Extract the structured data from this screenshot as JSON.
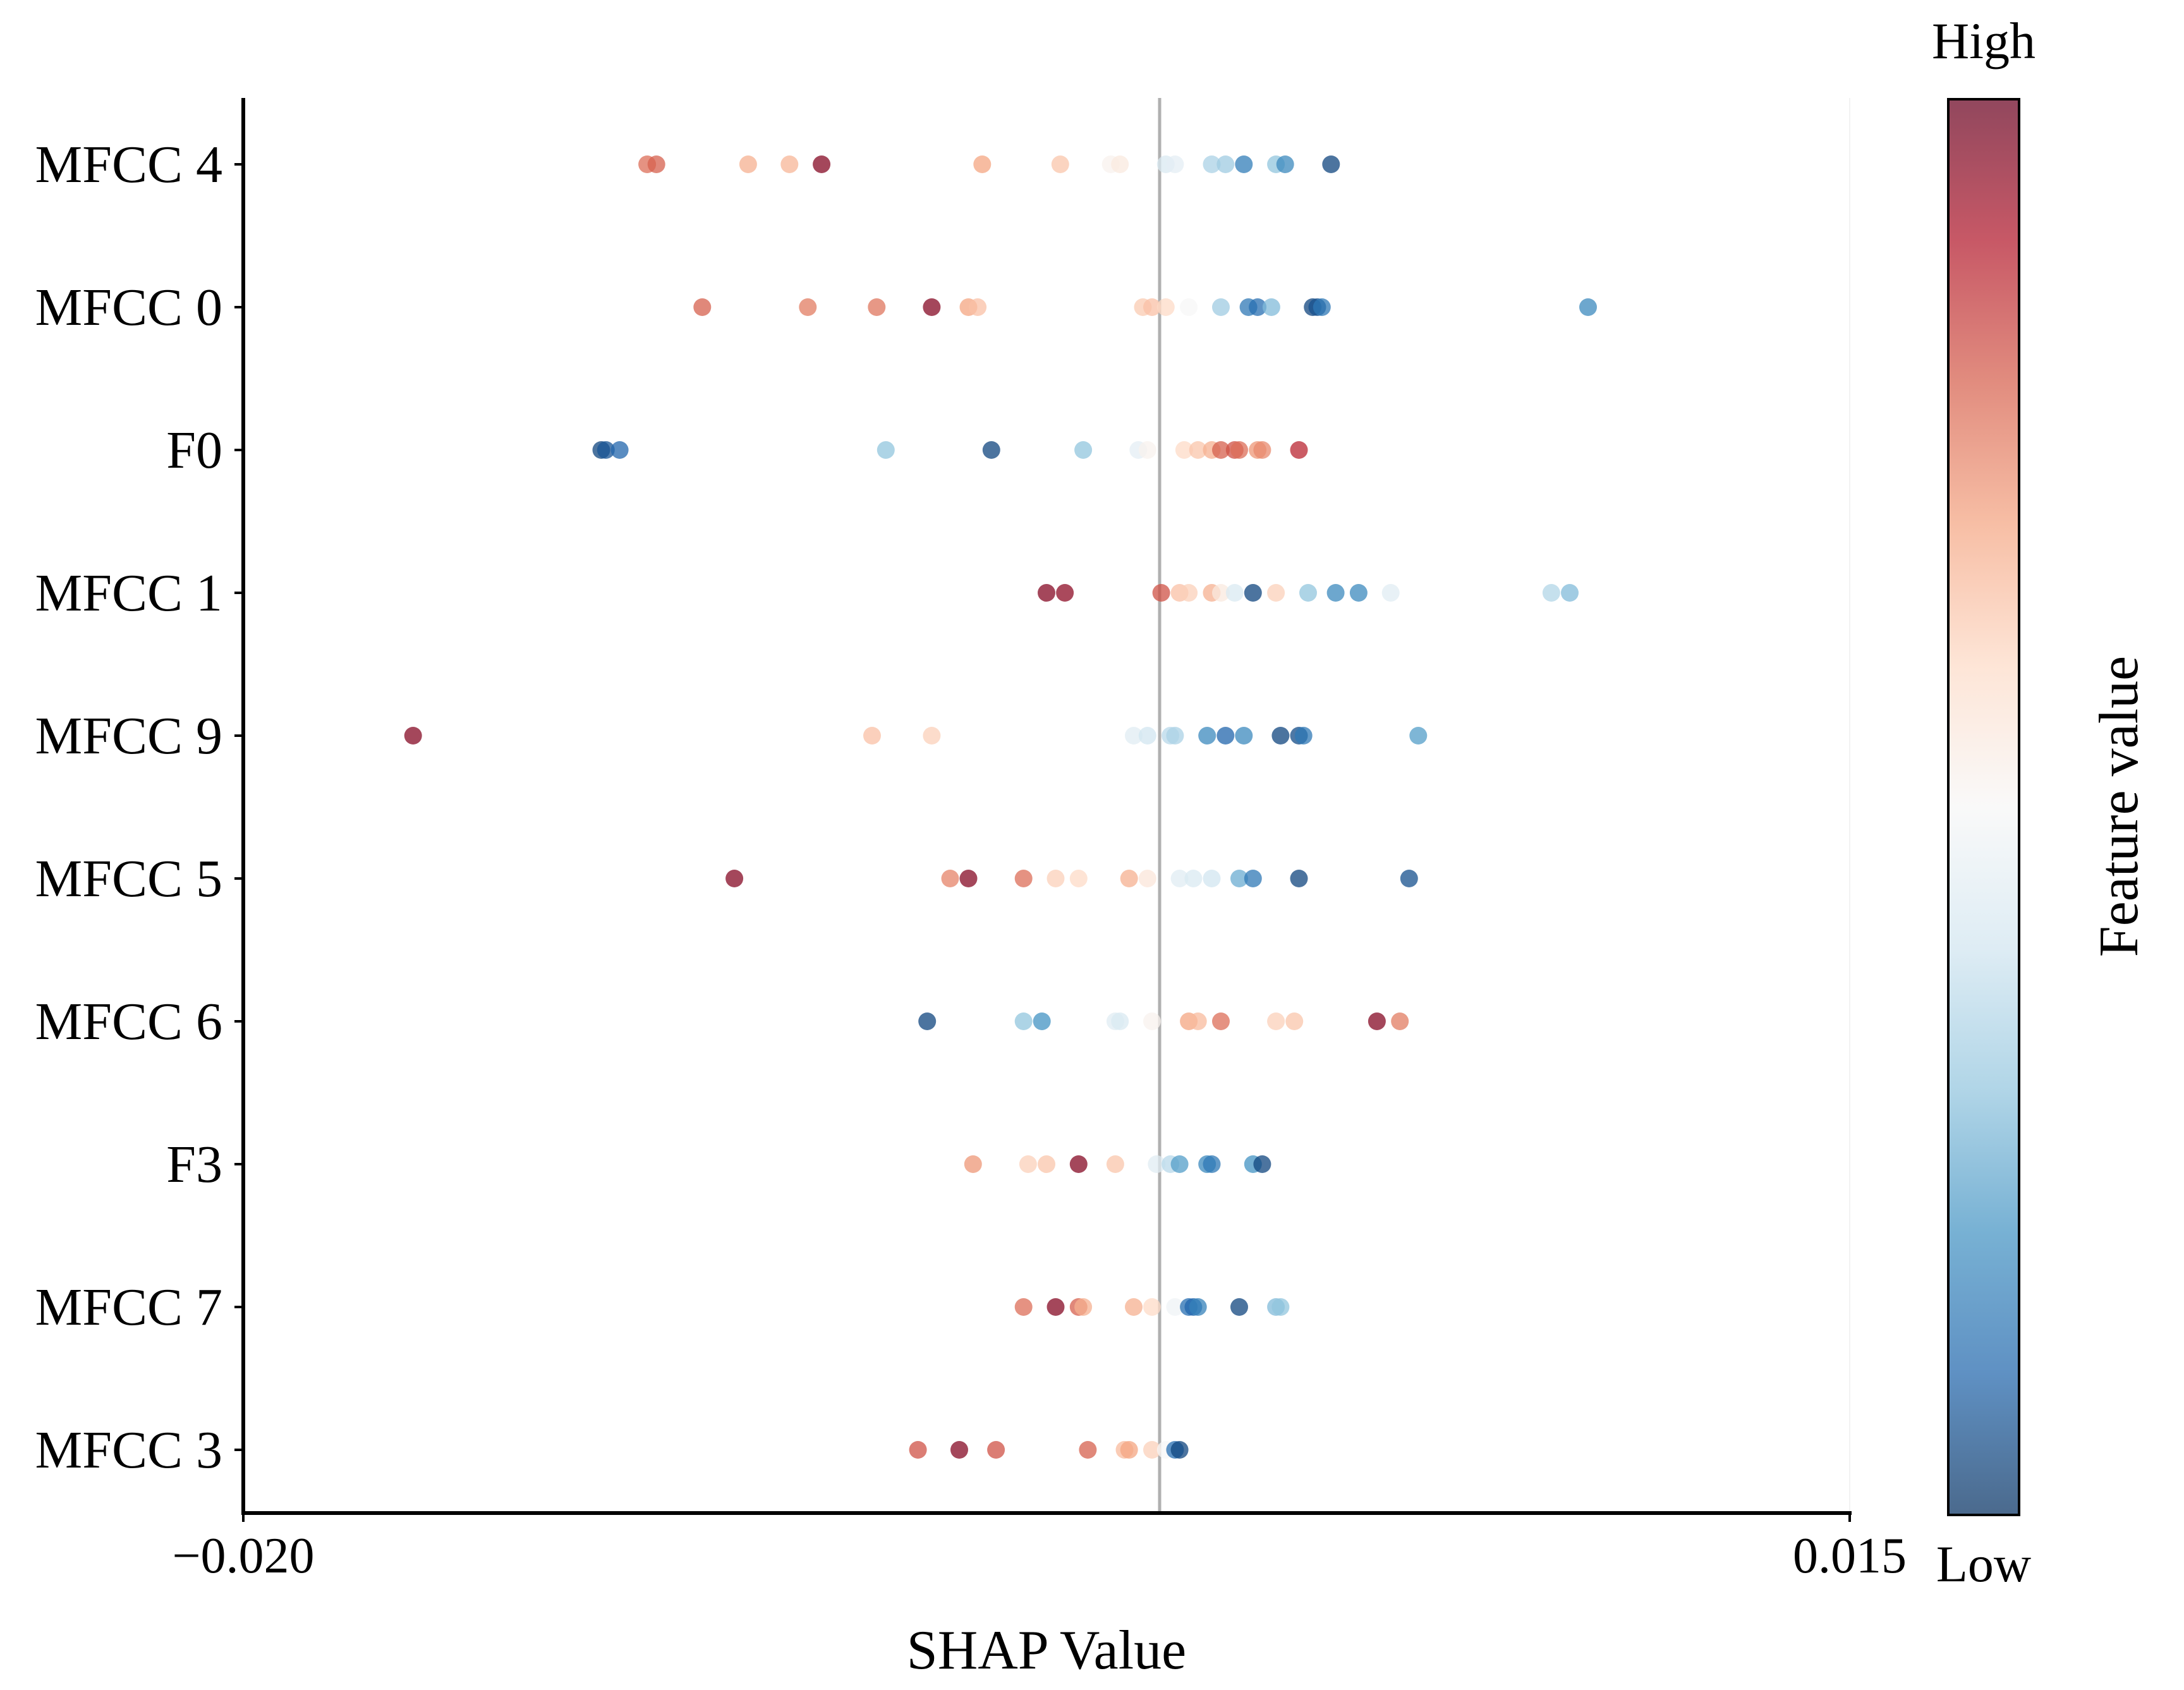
{
  "chart_data": {
    "type": "scatter",
    "xlabel": "SHAP Value",
    "xlim": [
      -0.02,
      0.015
    ],
    "xticks": [
      "−0.020",
      "0.015"
    ],
    "reference_line_x": 0.0,
    "features": [
      "MFCC 4",
      "MFCC 0",
      "F0",
      "MFCC 1",
      "MFCC 9",
      "MFCC 5",
      "MFCC 6",
      "F3",
      "MFCC 7",
      "MFCC 3"
    ],
    "colorbar": {
      "label": "Feature value",
      "high_label": "High",
      "low_label": "Low",
      "colors": [
        "#053061",
        "#2166ac",
        "#4393c3",
        "#92c5de",
        "#d1e5f0",
        "#f7f7f7",
        "#fddbc7",
        "#f4a582",
        "#d6604d",
        "#b2182b",
        "#67001f"
      ]
    },
    "point_value_scale": "0 = low feature value, 1 = high feature value",
    "points": [
      {
        "feature": "MFCC 4",
        "x": -0.0112,
        "value": 0.78
      },
      {
        "feature": "MFCC 4",
        "x": -0.011,
        "value": 0.8
      },
      {
        "feature": "MFCC 4",
        "x": -0.009,
        "value": 0.68
      },
      {
        "feature": "MFCC 4",
        "x": -0.0081,
        "value": 0.67
      },
      {
        "feature": "MFCC 4",
        "x": -0.0074,
        "value": 0.96
      },
      {
        "feature": "MFCC 4",
        "x": -0.0039,
        "value": 0.7
      },
      {
        "feature": "MFCC 4",
        "x": -0.0022,
        "value": 0.64
      },
      {
        "feature": "MFCC 4",
        "x": -0.0011,
        "value": 0.52
      },
      {
        "feature": "MFCC 4",
        "x": -0.0009,
        "value": 0.55
      },
      {
        "feature": "MFCC 4",
        "x": 0.0001,
        "value": 0.42
      },
      {
        "feature": "MFCC 4",
        "x": 0.0003,
        "value": 0.45
      },
      {
        "feature": "MFCC 4",
        "x": 0.0011,
        "value": 0.34
      },
      {
        "feature": "MFCC 4",
        "x": 0.0014,
        "value": 0.32
      },
      {
        "feature": "MFCC 4",
        "x": 0.0018,
        "value": 0.15
      },
      {
        "feature": "MFCC 4",
        "x": 0.0025,
        "value": 0.3
      },
      {
        "feature": "MFCC 4",
        "x": 0.0027,
        "value": 0.18
      },
      {
        "feature": "MFCC 4",
        "x": 0.0037,
        "value": 0.04
      },
      {
        "feature": "MFCC 0",
        "x": -0.01,
        "value": 0.8
      },
      {
        "feature": "MFCC 0",
        "x": -0.0077,
        "value": 0.76
      },
      {
        "feature": "MFCC 0",
        "x": -0.0062,
        "value": 0.77
      },
      {
        "feature": "MFCC 0",
        "x": -0.005,
        "value": 0.96
      },
      {
        "feature": "MFCC 0",
        "x": -0.0042,
        "value": 0.7
      },
      {
        "feature": "MFCC 0",
        "x": -0.004,
        "value": 0.65
      },
      {
        "feature": "MFCC 0",
        "x": -0.0004,
        "value": 0.63
      },
      {
        "feature": "MFCC 0",
        "x": -0.0002,
        "value": 0.65
      },
      {
        "feature": "MFCC 0",
        "x": 0.0001,
        "value": 0.6
      },
      {
        "feature": "MFCC 0",
        "x": 0.0006,
        "value": 0.5
      },
      {
        "feature": "MFCC 0",
        "x": 0.0013,
        "value": 0.32
      },
      {
        "feature": "MFCC 0",
        "x": 0.0019,
        "value": 0.14
      },
      {
        "feature": "MFCC 0",
        "x": 0.0021,
        "value": 0.12
      },
      {
        "feature": "MFCC 0",
        "x": 0.0024,
        "value": 0.28
      },
      {
        "feature": "MFCC 0",
        "x": 0.0033,
        "value": 0.04
      },
      {
        "feature": "MFCC 0",
        "x": 0.0034,
        "value": 0.06
      },
      {
        "feature": "MFCC 0",
        "x": 0.0035,
        "value": 0.14
      },
      {
        "feature": "MFCC 0",
        "x": 0.0093,
        "value": 0.18
      },
      {
        "feature": "F0",
        "x": -0.0122,
        "value": 0.04
      },
      {
        "feature": "F0",
        "x": -0.0121,
        "value": 0.07
      },
      {
        "feature": "F0",
        "x": -0.0118,
        "value": 0.1
      },
      {
        "feature": "F0",
        "x": -0.006,
        "value": 0.3
      },
      {
        "feature": "F0",
        "x": -0.0037,
        "value": 0.04
      },
      {
        "feature": "F0",
        "x": -0.0017,
        "value": 0.3
      },
      {
        "feature": "F0",
        "x": -0.0005,
        "value": 0.45
      },
      {
        "feature": "F0",
        "x": -0.0003,
        "value": 0.52
      },
      {
        "feature": "F0",
        "x": 0.0005,
        "value": 0.6
      },
      {
        "feature": "F0",
        "x": 0.0008,
        "value": 0.64
      },
      {
        "feature": "F0",
        "x": 0.0011,
        "value": 0.68
      },
      {
        "feature": "F0",
        "x": 0.0013,
        "value": 0.8
      },
      {
        "feature": "F0",
        "x": 0.0016,
        "value": 0.82
      },
      {
        "feature": "F0",
        "x": 0.0017,
        "value": 0.78
      },
      {
        "feature": "F0",
        "x": 0.0021,
        "value": 0.72
      },
      {
        "feature": "F0",
        "x": 0.0022,
        "value": 0.74
      },
      {
        "feature": "F0",
        "x": 0.003,
        "value": 0.88
      },
      {
        "feature": "MFCC 1",
        "x": -0.0025,
        "value": 0.96
      },
      {
        "feature": "MFCC 1",
        "x": -0.0021,
        "value": 0.95
      },
      {
        "feature": "MFCC 1",
        "x": 0.0,
        "value": 0.82
      },
      {
        "feature": "MFCC 1",
        "x": 0.0004,
        "value": 0.65
      },
      {
        "feature": "MFCC 1",
        "x": 0.0006,
        "value": 0.62
      },
      {
        "feature": "MFCC 1",
        "x": 0.0011,
        "value": 0.68
      },
      {
        "feature": "MFCC 1",
        "x": 0.0013,
        "value": 0.55
      },
      {
        "feature": "MFCC 1",
        "x": 0.0016,
        "value": 0.42
      },
      {
        "feature": "MFCC 1",
        "x": 0.002,
        "value": 0.04
      },
      {
        "feature": "MFCC 1",
        "x": 0.0025,
        "value": 0.62
      },
      {
        "feature": "MFCC 1",
        "x": 0.0032,
        "value": 0.3
      },
      {
        "feature": "MFCC 1",
        "x": 0.0038,
        "value": 0.18
      },
      {
        "feature": "MFCC 1",
        "x": 0.0043,
        "value": 0.18
      },
      {
        "feature": "MFCC 1",
        "x": 0.005,
        "value": 0.44
      },
      {
        "feature": "MFCC 1",
        "x": 0.0085,
        "value": 0.35
      },
      {
        "feature": "MFCC 1",
        "x": 0.0089,
        "value": 0.28
      },
      {
        "feature": "MFCC 9",
        "x": -0.0163,
        "value": 0.96
      },
      {
        "feature": "MFCC 9",
        "x": -0.0063,
        "value": 0.65
      },
      {
        "feature": "MFCC 9",
        "x": -0.005,
        "value": 0.62
      },
      {
        "feature": "MFCC 9",
        "x": -0.0006,
        "value": 0.44
      },
      {
        "feature": "MFCC 9",
        "x": -0.0003,
        "value": 0.4
      },
      {
        "feature": "MFCC 9",
        "x": 0.0002,
        "value": 0.36
      },
      {
        "feature": "MFCC 9",
        "x": 0.0003,
        "value": 0.34
      },
      {
        "feature": "MFCC 9",
        "x": 0.001,
        "value": 0.18
      },
      {
        "feature": "MFCC 9",
        "x": 0.0014,
        "value": 0.1
      },
      {
        "feature": "MFCC 9",
        "x": 0.0018,
        "value": 0.18
      },
      {
        "feature": "MFCC 9",
        "x": 0.0026,
        "value": 0.04
      },
      {
        "feature": "MFCC 9",
        "x": 0.003,
        "value": 0.05
      },
      {
        "feature": "MFCC 9",
        "x": 0.0031,
        "value": 0.14
      },
      {
        "feature": "MFCC 9",
        "x": 0.0056,
        "value": 0.22
      },
      {
        "feature": "MFCC 5",
        "x": -0.0093,
        "value": 0.96
      },
      {
        "feature": "MFCC 5",
        "x": -0.0046,
        "value": 0.75
      },
      {
        "feature": "MFCC 5",
        "x": -0.0042,
        "value": 0.96
      },
      {
        "feature": "MFCC 5",
        "x": -0.003,
        "value": 0.78
      },
      {
        "feature": "MFCC 5",
        "x": -0.0023,
        "value": 0.62
      },
      {
        "feature": "MFCC 5",
        "x": -0.0018,
        "value": 0.6
      },
      {
        "feature": "MFCC 5",
        "x": -0.0007,
        "value": 0.68
      },
      {
        "feature": "MFCC 5",
        "x": -0.0003,
        "value": 0.56
      },
      {
        "feature": "MFCC 5",
        "x": 0.0004,
        "value": 0.44
      },
      {
        "feature": "MFCC 5",
        "x": 0.0007,
        "value": 0.42
      },
      {
        "feature": "MFCC 5",
        "x": 0.0011,
        "value": 0.4
      },
      {
        "feature": "MFCC 5",
        "x": 0.0017,
        "value": 0.25
      },
      {
        "feature": "MFCC 5",
        "x": 0.002,
        "value": 0.14
      },
      {
        "feature": "MFCC 5",
        "x": 0.003,
        "value": 0.04
      },
      {
        "feature": "MFCC 5",
        "x": 0.0054,
        "value": 0.06
      },
      {
        "feature": "MFCC 6",
        "x": -0.0051,
        "value": 0.04
      },
      {
        "feature": "MFCC 6",
        "x": -0.003,
        "value": 0.3
      },
      {
        "feature": "MFCC 6",
        "x": -0.0026,
        "value": 0.2
      },
      {
        "feature": "MFCC 6",
        "x": -0.001,
        "value": 0.44
      },
      {
        "feature": "MFCC 6",
        "x": -0.0009,
        "value": 0.42
      },
      {
        "feature": "MFCC 6",
        "x": -0.0002,
        "value": 0.52
      },
      {
        "feature": "MFCC 6",
        "x": 0.0006,
        "value": 0.7
      },
      {
        "feature": "MFCC 6",
        "x": 0.0008,
        "value": 0.66
      },
      {
        "feature": "MFCC 6",
        "x": 0.0013,
        "value": 0.78
      },
      {
        "feature": "MFCC 6",
        "x": 0.0025,
        "value": 0.62
      },
      {
        "feature": "MFCC 6",
        "x": 0.0029,
        "value": 0.64
      },
      {
        "feature": "MFCC 6",
        "x": 0.0047,
        "value": 0.96
      },
      {
        "feature": "MFCC 6",
        "x": 0.0052,
        "value": 0.76
      },
      {
        "feature": "F3",
        "x": -0.0041,
        "value": 0.72
      },
      {
        "feature": "F3",
        "x": -0.0029,
        "value": 0.62
      },
      {
        "feature": "F3",
        "x": -0.0025,
        "value": 0.64
      },
      {
        "feature": "F3",
        "x": -0.0018,
        "value": 0.96
      },
      {
        "feature": "F3",
        "x": -0.001,
        "value": 0.64
      },
      {
        "feature": "F3",
        "x": -0.0001,
        "value": 0.44
      },
      {
        "feature": "F3",
        "x": 0.0002,
        "value": 0.36
      },
      {
        "feature": "F3",
        "x": 0.0004,
        "value": 0.22
      },
      {
        "feature": "F3",
        "x": 0.001,
        "value": 0.18
      },
      {
        "feature": "F3",
        "x": 0.0011,
        "value": 0.14
      },
      {
        "feature": "F3",
        "x": 0.002,
        "value": 0.2
      },
      {
        "feature": "F3",
        "x": 0.0022,
        "value": 0.04
      },
      {
        "feature": "MFCC 7",
        "x": -0.003,
        "value": 0.78
      },
      {
        "feature": "MFCC 7",
        "x": -0.0023,
        "value": 0.96
      },
      {
        "feature": "MFCC 7",
        "x": -0.0018,
        "value": 0.8
      },
      {
        "feature": "MFCC 7",
        "x": -0.0017,
        "value": 0.68
      },
      {
        "feature": "MFCC 7",
        "x": -0.0006,
        "value": 0.68
      },
      {
        "feature": "MFCC 7",
        "x": -0.0002,
        "value": 0.6
      },
      {
        "feature": "MFCC 7",
        "x": 0.0003,
        "value": 0.48
      },
      {
        "feature": "MFCC 7",
        "x": 0.0006,
        "value": 0.12
      },
      {
        "feature": "MFCC 7",
        "x": 0.0007,
        "value": 0.1
      },
      {
        "feature": "MFCC 7",
        "x": 0.0008,
        "value": 0.16
      },
      {
        "feature": "MFCC 7",
        "x": 0.0017,
        "value": 0.04
      },
      {
        "feature": "MFCC 7",
        "x": 0.0025,
        "value": 0.28
      },
      {
        "feature": "MFCC 7",
        "x": 0.0026,
        "value": 0.3
      },
      {
        "feature": "MFCC 3",
        "x": -0.0053,
        "value": 0.82
      },
      {
        "feature": "MFCC 3",
        "x": -0.0044,
        "value": 0.96
      },
      {
        "feature": "MFCC 3",
        "x": -0.0036,
        "value": 0.82
      },
      {
        "feature": "MFCC 3",
        "x": -0.0016,
        "value": 0.8
      },
      {
        "feature": "MFCC 3",
        "x": -0.0008,
        "value": 0.66
      },
      {
        "feature": "MFCC 3",
        "x": -0.0007,
        "value": 0.7
      },
      {
        "feature": "MFCC 3",
        "x": -0.0002,
        "value": 0.62
      },
      {
        "feature": "MFCC 3",
        "x": 0.0001,
        "value": 0.5
      },
      {
        "feature": "MFCC 3",
        "x": 0.0003,
        "value": 0.12
      },
      {
        "feature": "MFCC 3",
        "x": 0.0004,
        "value": 0.04
      }
    ]
  }
}
